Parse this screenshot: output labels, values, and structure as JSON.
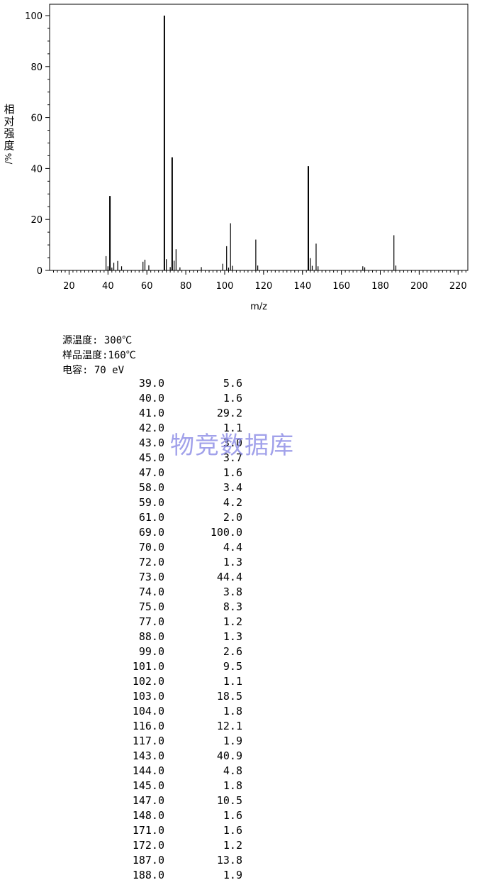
{
  "chart_data": {
    "type": "bar",
    "xlabel": "m/z",
    "ylabel": "相对强度/%",
    "xlim": [
      10,
      225
    ],
    "ylim": [
      0,
      100
    ],
    "xticks": [
      20,
      40,
      60,
      80,
      100,
      120,
      140,
      160,
      180,
      200,
      220
    ],
    "yticks": [
      0,
      20,
      40,
      60,
      80,
      100
    ],
    "grid": false,
    "series": [
      {
        "x": [
          39,
          40,
          41,
          42,
          43,
          45,
          47,
          58,
          59,
          61,
          69,
          70,
          72,
          73,
          74,
          75,
          77,
          88,
          99,
          101,
          102,
          103,
          104,
          116,
          117,
          143,
          144,
          145,
          147,
          148,
          171,
          172,
          187,
          188
        ],
        "values": [
          5.6,
          1.6,
          29.2,
          1.1,
          3.0,
          3.7,
          1.6,
          3.4,
          4.2,
          2.0,
          100.0,
          4.4,
          1.3,
          44.4,
          3.8,
          8.3,
          1.2,
          1.3,
          2.6,
          9.5,
          1.1,
          18.5,
          1.8,
          12.1,
          1.9,
          40.9,
          4.8,
          1.8,
          10.5,
          1.6,
          1.6,
          1.2,
          13.8,
          1.9
        ]
      }
    ]
  },
  "ylabel_chars": [
    "相",
    "对",
    "强",
    "度"
  ],
  "ylabel_unit": "/%",
  "conditions": [
    {
      "label": "源温度: ",
      "value": "300℃"
    },
    {
      "label": "样品温度:",
      "value": "160℃"
    },
    {
      "label": "电容: ",
      "value": "70 eV"
    }
  ],
  "peak_table": [
    {
      "mz": "39.0",
      "abundance": "5.6"
    },
    {
      "mz": "40.0",
      "abundance": "1.6"
    },
    {
      "mz": "41.0",
      "abundance": "29.2"
    },
    {
      "mz": "42.0",
      "abundance": "1.1"
    },
    {
      "mz": "43.0",
      "abundance": "3.0"
    },
    {
      "mz": "45.0",
      "abundance": "3.7"
    },
    {
      "mz": "47.0",
      "abundance": "1.6"
    },
    {
      "mz": "58.0",
      "abundance": "3.4"
    },
    {
      "mz": "59.0",
      "abundance": "4.2"
    },
    {
      "mz": "61.0",
      "abundance": "2.0"
    },
    {
      "mz": "69.0",
      "abundance": "100.0"
    },
    {
      "mz": "70.0",
      "abundance": "4.4"
    },
    {
      "mz": "72.0",
      "abundance": "1.3"
    },
    {
      "mz": "73.0",
      "abundance": "44.4"
    },
    {
      "mz": "74.0",
      "abundance": "3.8"
    },
    {
      "mz": "75.0",
      "abundance": "8.3"
    },
    {
      "mz": "77.0",
      "abundance": "1.2"
    },
    {
      "mz": "88.0",
      "abundance": "1.3"
    },
    {
      "mz": "99.0",
      "abundance": "2.6"
    },
    {
      "mz": "101.0",
      "abundance": "9.5"
    },
    {
      "mz": "102.0",
      "abundance": "1.1"
    },
    {
      "mz": "103.0",
      "abundance": "18.5"
    },
    {
      "mz": "104.0",
      "abundance": "1.8"
    },
    {
      "mz": "116.0",
      "abundance": "12.1"
    },
    {
      "mz": "117.0",
      "abundance": "1.9"
    },
    {
      "mz": "143.0",
      "abundance": "40.9"
    },
    {
      "mz": "144.0",
      "abundance": "4.8"
    },
    {
      "mz": "145.0",
      "abundance": "1.8"
    },
    {
      "mz": "147.0",
      "abundance": "10.5"
    },
    {
      "mz": "148.0",
      "abundance": "1.6"
    },
    {
      "mz": "171.0",
      "abundance": "1.6"
    },
    {
      "mz": "172.0",
      "abundance": "1.2"
    },
    {
      "mz": "187.0",
      "abundance": "13.8"
    },
    {
      "mz": "188.0",
      "abundance": "1.9"
    }
  ],
  "watermark": "物竞数据库",
  "colors": {
    "axis": "#000000",
    "bar": "#000000",
    "watermark": "#8a8ae6"
  }
}
